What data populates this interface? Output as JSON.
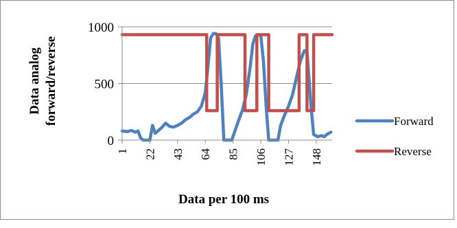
{
  "chart_data": {
    "type": "line",
    "xlabel": "Data per 100 ms",
    "ylabel_lines": [
      "Data analog",
      "forward/reverse"
    ],
    "ylim": [
      0,
      1000
    ],
    "y_ticks": [
      0,
      500,
      1000
    ],
    "x_tick_labels": [
      "1",
      "22",
      "43",
      "64",
      "85",
      "106",
      "127",
      "148"
    ],
    "x_range": [
      1,
      160
    ],
    "grid": "horizontal",
    "legend_position": "right",
    "series": [
      {
        "name": "Forward",
        "color": "#4f81bd",
        "points": [
          [
            1,
            80
          ],
          [
            5,
            75
          ],
          [
            8,
            85
          ],
          [
            11,
            70
          ],
          [
            13,
            80
          ],
          [
            15,
            20
          ],
          [
            17,
            0
          ],
          [
            20,
            0
          ],
          [
            22,
            0
          ],
          [
            24,
            130
          ],
          [
            26,
            60
          ],
          [
            28,
            80
          ],
          [
            31,
            110
          ],
          [
            34,
            150
          ],
          [
            37,
            120
          ],
          [
            40,
            115
          ],
          [
            43,
            130
          ],
          [
            46,
            150
          ],
          [
            49,
            180
          ],
          [
            52,
            200
          ],
          [
            55,
            230
          ],
          [
            58,
            250
          ],
          [
            61,
            300
          ],
          [
            64,
            420
          ],
          [
            66,
            650
          ],
          [
            68,
            900
          ],
          [
            70,
            940
          ],
          [
            72,
            940
          ],
          [
            74,
            900
          ],
          [
            76,
            500
          ],
          [
            78,
            0
          ],
          [
            80,
            0
          ],
          [
            82,
            0
          ],
          [
            84,
            0
          ],
          [
            87,
            100
          ],
          [
            90,
            200
          ],
          [
            92,
            260
          ],
          [
            95,
            400
          ],
          [
            98,
            650
          ],
          [
            100,
            850
          ],
          [
            102,
            920
          ],
          [
            104,
            930
          ],
          [
            106,
            920
          ],
          [
            108,
            700
          ],
          [
            110,
            300
          ],
          [
            112,
            0
          ],
          [
            116,
            0
          ],
          [
            119,
            0
          ],
          [
            121,
            130
          ],
          [
            124,
            220
          ],
          [
            127,
            300
          ],
          [
            130,
            400
          ],
          [
            133,
            550
          ],
          [
            136,
            700
          ],
          [
            139,
            790
          ],
          [
            141,
            780
          ],
          [
            144,
            300
          ],
          [
            146,
            50
          ],
          [
            149,
            30
          ],
          [
            152,
            40
          ],
          [
            154,
            30
          ],
          [
            156,
            50
          ],
          [
            159,
            70
          ]
        ]
      },
      {
        "name": "Reverse",
        "color": "#c0504d",
        "points": [
          [
            1,
            930
          ],
          [
            65,
            930
          ],
          [
            65,
            260
          ],
          [
            73,
            260
          ],
          [
            73,
            930
          ],
          [
            94,
            930
          ],
          [
            94,
            260
          ],
          [
            103,
            260
          ],
          [
            103,
            930
          ],
          [
            112,
            930
          ],
          [
            112,
            260
          ],
          [
            135,
            260
          ],
          [
            135,
            930
          ],
          [
            141,
            930
          ],
          [
            141,
            260
          ],
          [
            146,
            260
          ],
          [
            146,
            930
          ],
          [
            160,
            930
          ]
        ]
      }
    ]
  }
}
